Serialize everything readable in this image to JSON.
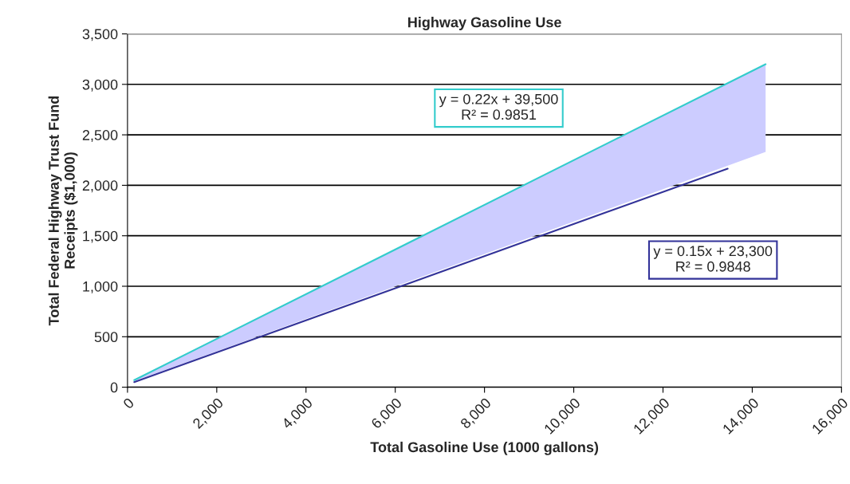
{
  "chart_data": {
    "type": "line",
    "title": "Highway Gasoline Use",
    "xlabel": "Total Gasoline Use (1000 gallons)",
    "ylabel": "Total Federal Highway Trust Fund\nReceipts ($1,000)",
    "series": [
      {
        "color": "#33cccc",
        "x": [
          150,
          14300
        ],
        "values": [
          70,
          3200
        ],
        "lower": [
          60,
          2330
        ],
        "upper": [
          70,
          3200
        ]
      },
      {
        "color": "#333399",
        "x": [
          150,
          13450
        ],
        "values": [
          50,
          2165
        ]
      }
    ],
    "annotations": [
      "y = 0.22x + 39,500\nR² = 0.9851",
      "y = 0.15x + 23,300\nR² = 0.9848"
    ],
    "xlim": [
      0,
      16000
    ],
    "xticks": [
      {
        "value": 0,
        "label": "0"
      },
      {
        "value": 2000,
        "label": "2,000"
      },
      {
        "value": 4000,
        "label": "4,000"
      },
      {
        "value": 6000,
        "label": "6,000"
      },
      {
        "value": 8000,
        "label": "8,000"
      },
      {
        "value": 10000,
        "label": "10,000"
      },
      {
        "value": 12000,
        "label": "12,000"
      },
      {
        "value": 14000,
        "label": "14,000"
      },
      {
        "value": 16000,
        "label": "16,000"
      }
    ],
    "ylim": [
      0,
      3500
    ],
    "yticks": [
      {
        "value": 0,
        "label": "0"
      },
      {
        "value": 500,
        "label": "500"
      },
      {
        "value": 1000,
        "label": "1,000"
      },
      {
        "value": 1500,
        "label": "1,500"
      },
      {
        "value": 2000,
        "label": "2,000"
      },
      {
        "value": 2500,
        "label": "2,500"
      },
      {
        "value": 3000,
        "label": "3,000"
      },
      {
        "value": 3500,
        "label": "3,500"
      }
    ],
    "grid": "y"
  }
}
